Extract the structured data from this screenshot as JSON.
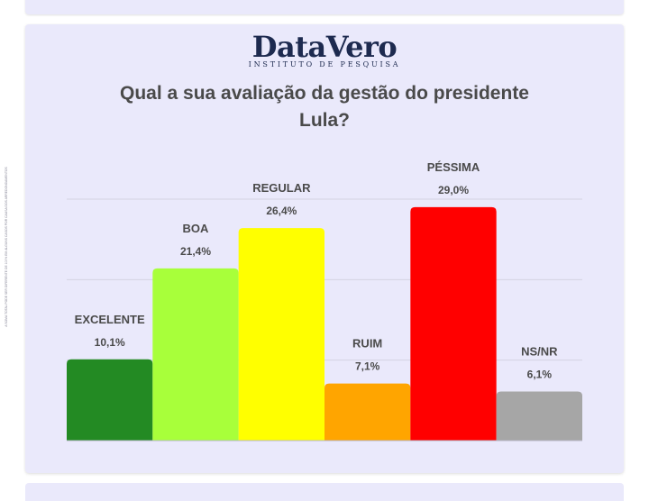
{
  "brand": {
    "name": "DataVero",
    "tagline": "INSTITUTO DE PESQUISA"
  },
  "disclaimer": "A SOMA TOTAL PODE SER DIFERENTE DE 100% EM ALGUNS CASOS POR CAUSA DOS ARREDONDAMENTOS",
  "chart_data": {
    "type": "bar",
    "title": "Qual a sua avaliação da gestão do presidente Lula?",
    "title_lines": [
      "Qual a sua avaliação da gestão do presidente",
      "Lula?"
    ],
    "categories": [
      "EXCELENTE",
      "BOA",
      "REGULAR",
      "RUIM",
      "PÉSSIMA",
      "NS/NR"
    ],
    "values": [
      10.1,
      21.4,
      26.4,
      7.1,
      29.0,
      6.1
    ],
    "value_labels": [
      "10,1%",
      "21,4%",
      "26,4%",
      "7,1%",
      "29,0%",
      "6,1%"
    ],
    "colors": [
      "#238a23",
      "#a8ff3a",
      "#ffff00",
      "#ffa500",
      "#ff0000",
      "#a6a6a6"
    ],
    "xlabel": "",
    "ylabel": "",
    "ylim": [
      0,
      30
    ],
    "grid": true,
    "legend": "none"
  }
}
